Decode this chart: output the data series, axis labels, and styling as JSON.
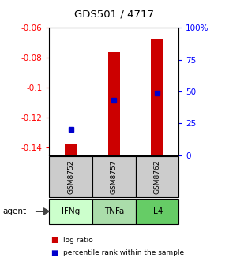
{
  "title": "GDS501 / 4717",
  "samples": [
    "GSM8752",
    "GSM8757",
    "GSM8762"
  ],
  "agents": [
    "IFNg",
    "TNFa",
    "IL4"
  ],
  "log_ratios": [
    -0.138,
    -0.076,
    -0.068
  ],
  "percentile_ranks": [
    20,
    43,
    49
  ],
  "ylim_left": [
    -0.145,
    -0.06
  ],
  "ylim_right": [
    0,
    100
  ],
  "left_ticks": [
    -0.14,
    -0.12,
    -0.1,
    -0.08,
    -0.06
  ],
  "right_ticks": [
    0,
    25,
    50,
    75,
    100
  ],
  "bar_color": "#cc0000",
  "dot_color": "#0000cc",
  "bar_base": -0.145,
  "grid_color": "#555555",
  "agent_colors": [
    "#ccffcc",
    "#aaddaa",
    "#66cc66"
  ],
  "sample_bg": "#cccccc",
  "legend_square_red": "#cc0000",
  "legend_square_blue": "#0000cc",
  "legend_label_ratio": "log ratio",
  "legend_label_pct": "percentile rank within the sample"
}
